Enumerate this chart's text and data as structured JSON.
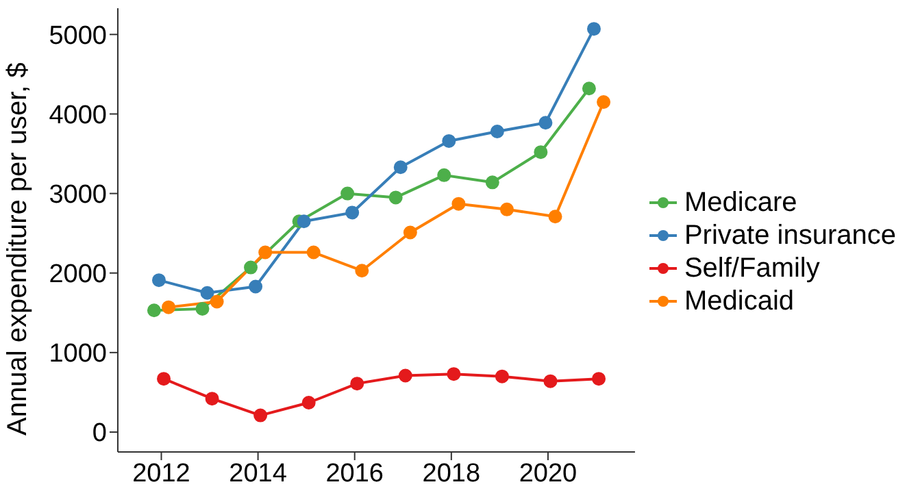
{
  "chart_data": {
    "type": "line",
    "ylabel": "Annual expenditure per user, $",
    "xlim": [
      2011.1,
      2021.8
    ],
    "xticks": [
      2012,
      2014,
      2016,
      2018,
      2020
    ],
    "ylim": [
      -250,
      5330
    ],
    "yticks": [
      0,
      1000,
      2000,
      3000,
      4000,
      5000
    ],
    "grid": false,
    "legend": "right",
    "marker": "circle",
    "line_style": "solid",
    "series": [
      {
        "name": "Medicare",
        "color": "#4daf4a",
        "x": [
          2011.85,
          2012.85,
          2013.85,
          2014.85,
          2015.85,
          2016.85,
          2017.85,
          2018.85,
          2019.85,
          2020.85
        ],
        "values": [
          1530,
          1550,
          2070,
          2650,
          3000,
          2950,
          3230,
          3140,
          3520,
          4320
        ]
      },
      {
        "name": "Private insurance",
        "color": "#377eb8",
        "x": [
          2011.95,
          2012.95,
          2013.95,
          2014.95,
          2015.95,
          2016.95,
          2017.95,
          2018.95,
          2019.95,
          2020.95
        ],
        "values": [
          1910,
          1750,
          1830,
          2650,
          2760,
          3330,
          3660,
          3780,
          3890,
          5070
        ]
      },
      {
        "name": "Self/Family",
        "color": "#e41a1c",
        "x": [
          2012.05,
          2013.05,
          2014.05,
          2015.05,
          2016.05,
          2017.05,
          2018.05,
          2019.05,
          2020.05,
          2021.05
        ],
        "values": [
          670,
          420,
          210,
          370,
          610,
          710,
          730,
          700,
          640,
          670
        ]
      },
      {
        "name": "Medicaid",
        "color": "#ff7f00",
        "x": [
          2012.15,
          2013.15,
          2014.15,
          2015.15,
          2016.15,
          2017.15,
          2018.15,
          2019.15,
          2020.15,
          2021.15
        ],
        "values": [
          1570,
          1640,
          2260,
          2260,
          2030,
          2510,
          2870,
          2800,
          2710,
          4150
        ]
      }
    ]
  }
}
